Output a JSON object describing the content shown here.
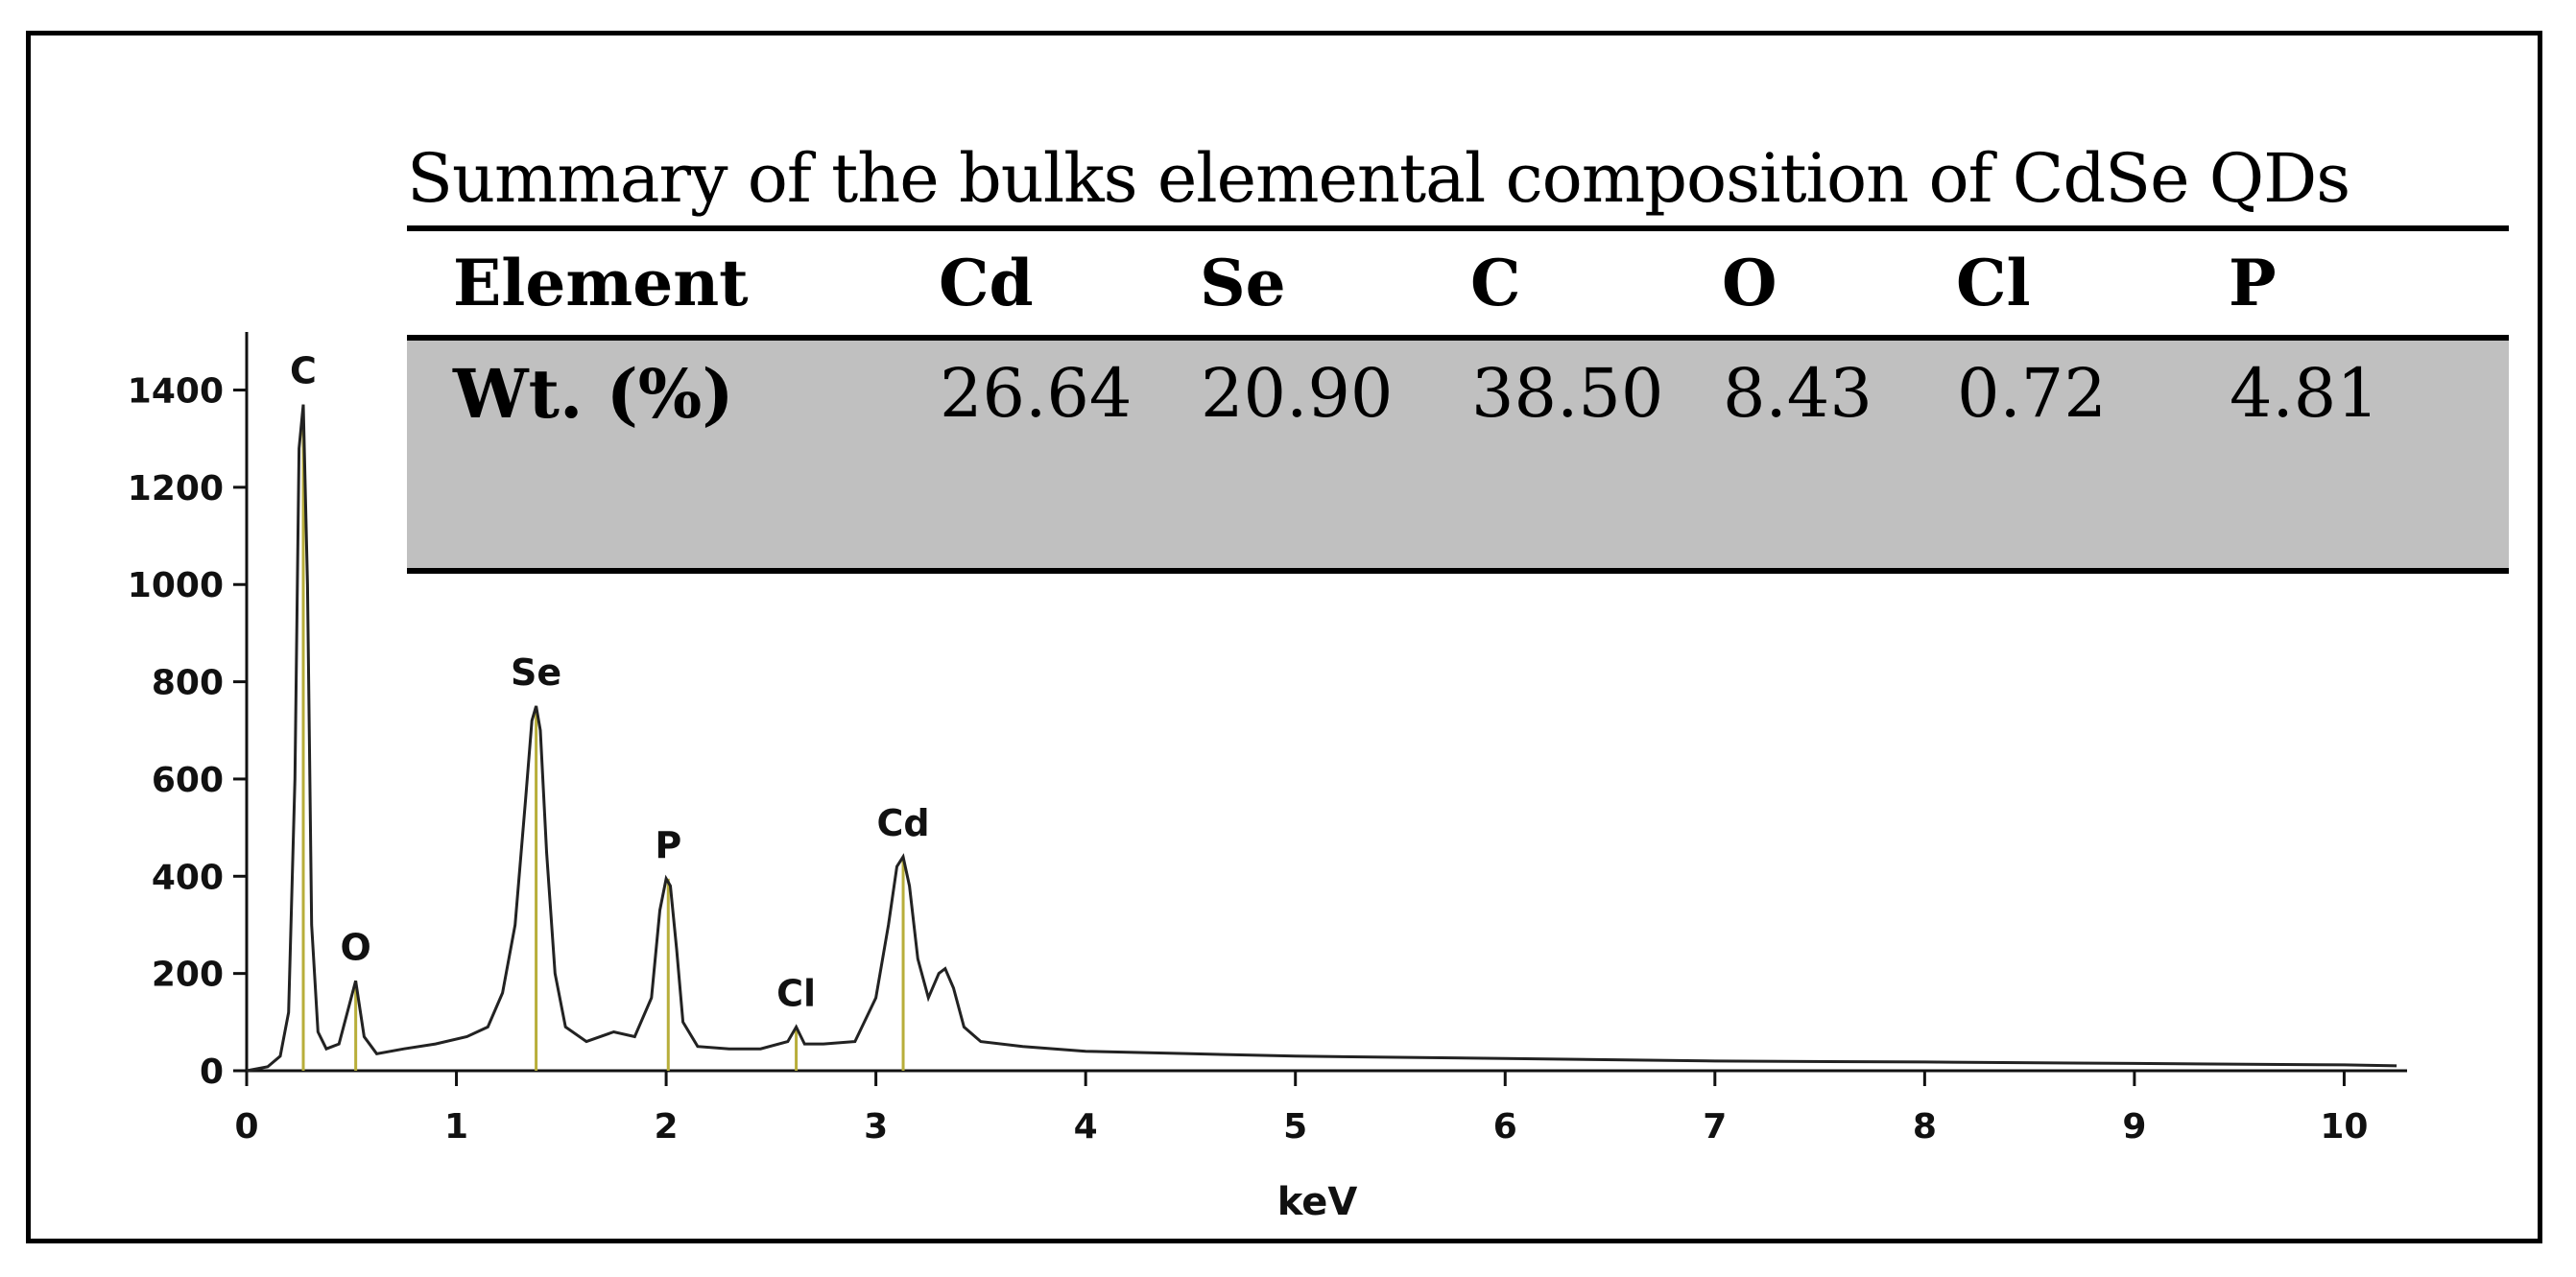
{
  "chart_data": {
    "type": "line",
    "xlabel": "keV",
    "ylabel": "",
    "xlim": [
      0,
      10.3
    ],
    "ylim": [
      0,
      1480
    ],
    "x_ticks": [
      "0",
      "1",
      "2",
      "3",
      "4",
      "5",
      "6",
      "7",
      "8",
      "9",
      "10"
    ],
    "y_ticks": [
      "0",
      "200",
      "400",
      "600",
      "800",
      "1000",
      "1200",
      "1400"
    ],
    "peaks": [
      {
        "label": "C",
        "x": 0.27,
        "y": 1370
      },
      {
        "label": "O",
        "x": 0.52,
        "y": 185
      },
      {
        "label": "Se",
        "x": 1.38,
        "y": 750
      },
      {
        "label": "P",
        "x": 2.01,
        "y": 395
      },
      {
        "label": "Cl",
        "x": 2.62,
        "y": 90
      },
      {
        "label": "Cd",
        "x": 3.13,
        "y": 440
      }
    ],
    "peak_marker_color": "#b8ae3a",
    "line_color": "#222222",
    "spectrum": {
      "x": [
        0.0,
        0.1,
        0.16,
        0.2,
        0.23,
        0.25,
        0.27,
        0.29,
        0.31,
        0.34,
        0.38,
        0.44,
        0.48,
        0.52,
        0.56,
        0.62,
        0.75,
        0.9,
        1.05,
        1.15,
        1.22,
        1.28,
        1.33,
        1.36,
        1.38,
        1.4,
        1.43,
        1.47,
        1.52,
        1.62,
        1.75,
        1.85,
        1.93,
        1.97,
        2.0,
        2.02,
        2.05,
        2.08,
        2.15,
        2.3,
        2.45,
        2.58,
        2.62,
        2.66,
        2.75,
        2.9,
        3.0,
        3.06,
        3.1,
        3.13,
        3.16,
        3.2,
        3.25,
        3.3,
        3.33,
        3.37,
        3.42,
        3.5,
        3.7,
        4.0,
        4.5,
        5.0,
        6.0,
        7.0,
        8.0,
        9.0,
        10.0,
        10.25
      ],
      "y": [
        0,
        8,
        30,
        120,
        600,
        1280,
        1370,
        1000,
        300,
        80,
        45,
        55,
        120,
        185,
        70,
        35,
        45,
        55,
        70,
        90,
        160,
        300,
        560,
        720,
        750,
        700,
        450,
        200,
        90,
        60,
        80,
        70,
        150,
        330,
        395,
        380,
        250,
        100,
        50,
        45,
        45,
        60,
        90,
        55,
        55,
        60,
        150,
        300,
        420,
        440,
        380,
        230,
        150,
        200,
        210,
        170,
        90,
        60,
        50,
        40,
        35,
        30,
        25,
        20,
        18,
        15,
        12,
        10
      ]
    }
  },
  "table": {
    "title": "Summary of the bulks elemental composition of CdSe QDs",
    "header": [
      "Element",
      "Cd",
      "Se",
      "C",
      "O",
      "Cl",
      "P"
    ],
    "row_label": "Wt. (%)",
    "values": [
      "26.64",
      "20.90",
      "38.50",
      "8.43",
      "0.72",
      "4.81"
    ],
    "row_background": "#c0c0c0"
  }
}
